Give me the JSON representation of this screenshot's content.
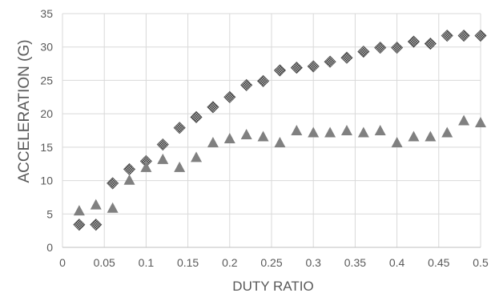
{
  "chart_data": {
    "type": "scatter",
    "title": "",
    "xlabel": "DUTY RATIO",
    "ylabel": "ACCELERATION (G)",
    "xlim": [
      0,
      0.5
    ],
    "ylim": [
      0,
      35
    ],
    "x_ticks": [
      "0",
      "0.05",
      "0.1",
      "0.15",
      "0.2",
      "0.25",
      "0.3",
      "0.35",
      "0.4",
      "0.45",
      "0.5"
    ],
    "y_ticks": [
      "0",
      "5",
      "10",
      "15",
      "20",
      "25",
      "30",
      "35"
    ],
    "grid": {
      "horizontal": true,
      "vertical": true
    },
    "legend": "none",
    "series": [
      {
        "marker": "diamond",
        "color": "#4d4d4d",
        "x": [
          0.02,
          0.04,
          0.06,
          0.08,
          0.1,
          0.12,
          0.14,
          0.16,
          0.18,
          0.2,
          0.22,
          0.24,
          0.26,
          0.28,
          0.3,
          0.32,
          0.34,
          0.36,
          0.38,
          0.4,
          0.42,
          0.44,
          0.46,
          0.48,
          0.5
        ],
        "y": [
          3.4,
          3.4,
          9.6,
          11.7,
          12.9,
          15.4,
          17.9,
          19.5,
          21.0,
          22.5,
          24.3,
          24.9,
          26.5,
          26.9,
          27.1,
          27.8,
          28.4,
          29.3,
          29.9,
          29.9,
          30.8,
          30.5,
          31.7,
          31.7,
          31.7
        ]
      },
      {
        "marker": "triangle",
        "color": "#808080",
        "x": [
          0.02,
          0.04,
          0.06,
          0.08,
          0.1,
          0.12,
          0.14,
          0.16,
          0.18,
          0.2,
          0.22,
          0.24,
          0.26,
          0.28,
          0.3,
          0.32,
          0.34,
          0.36,
          0.38,
          0.4,
          0.42,
          0.44,
          0.46,
          0.48,
          0.5
        ],
        "y": [
          5.4,
          6.3,
          5.8,
          10.0,
          11.9,
          13.1,
          11.9,
          13.4,
          15.6,
          16.2,
          16.8,
          16.5,
          15.6,
          17.4,
          17.1,
          17.1,
          17.4,
          17.1,
          17.4,
          15.6,
          16.5,
          16.5,
          17.1,
          18.9,
          18.6
        ]
      }
    ]
  }
}
